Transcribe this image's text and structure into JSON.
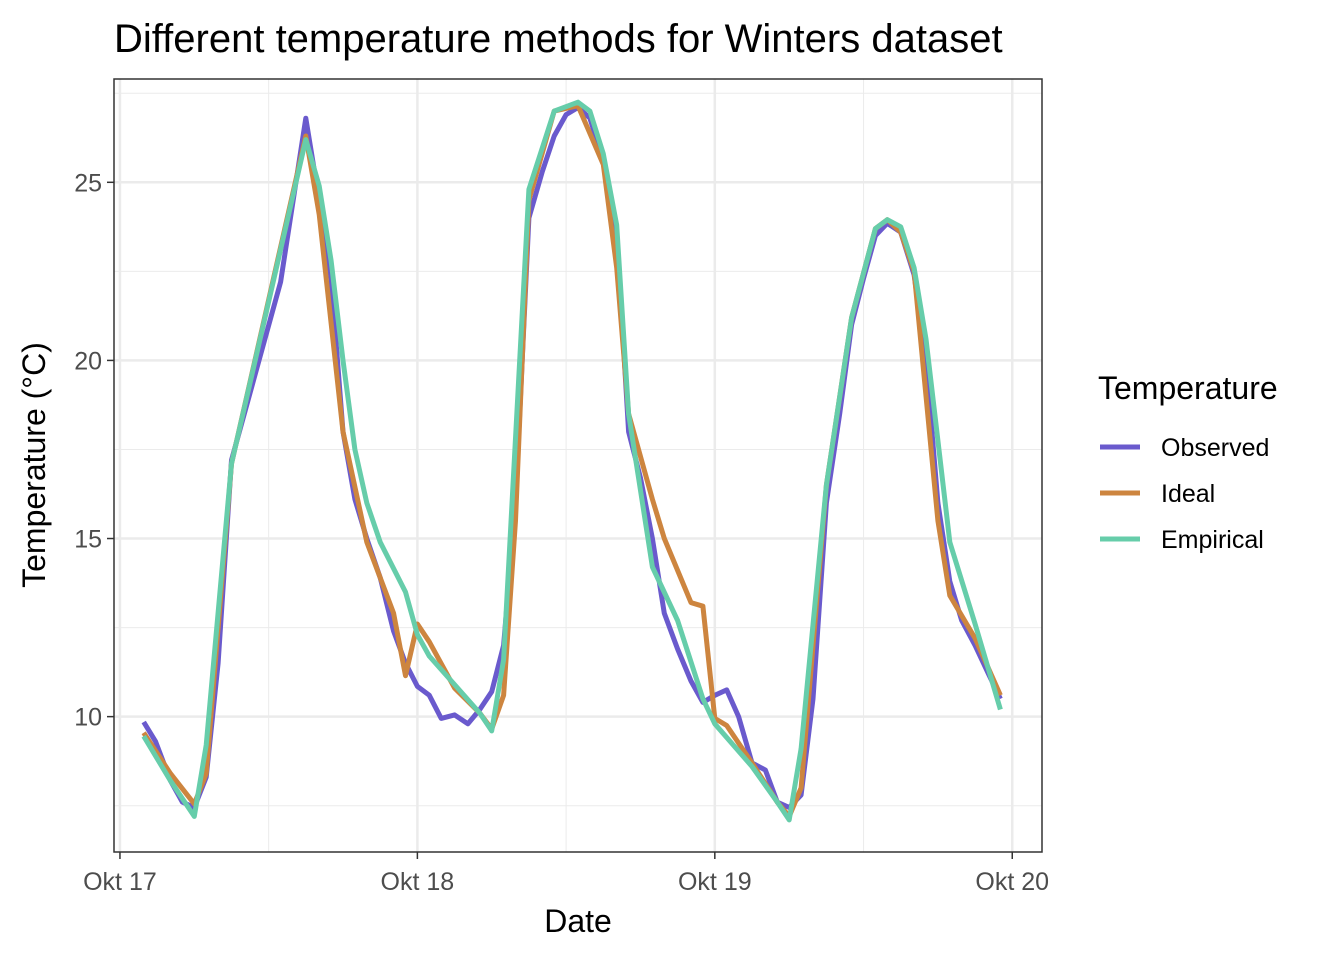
{
  "chart_data": {
    "type": "line",
    "title": "Different temperature methods for Winters dataset",
    "xlabel": "Date",
    "ylabel": "Temperature (°C)",
    "x_ticks": [
      "Okt 17",
      "Okt 18",
      "Okt 19",
      "Okt 20"
    ],
    "y_ticks": [
      "10",
      "15",
      "20",
      "25"
    ],
    "xlim": [
      -0.02,
      3.1
    ],
    "ylim": [
      6.2,
      27.9
    ],
    "x_unit": "days since Okt 17 00:00",
    "grid": true,
    "legend": {
      "title": "Temperature",
      "position": "right"
    },
    "series": [
      {
        "name": "Observed",
        "color": "#6a5acd",
        "points": [
          [
            0.08,
            9.85
          ],
          [
            0.12,
            9.3
          ],
          [
            0.17,
            8.2
          ],
          [
            0.21,
            7.6
          ],
          [
            0.25,
            7.45
          ],
          [
            0.29,
            8.3
          ],
          [
            0.33,
            11.5
          ],
          [
            0.375,
            17.2
          ],
          [
            0.54,
            22.2
          ],
          [
            0.625,
            26.8
          ],
          [
            0.67,
            24.5
          ],
          [
            0.71,
            22.3
          ],
          [
            0.75,
            18.0
          ],
          [
            0.79,
            16.1
          ],
          [
            0.83,
            15.0
          ],
          [
            0.875,
            13.9
          ],
          [
            0.92,
            12.4
          ],
          [
            0.96,
            11.5
          ],
          [
            1.0,
            10.85
          ],
          [
            1.04,
            10.6
          ],
          [
            1.08,
            9.95
          ],
          [
            1.125,
            10.05
          ],
          [
            1.17,
            9.8
          ],
          [
            1.21,
            10.2
          ],
          [
            1.25,
            10.7
          ],
          [
            1.29,
            12.0
          ],
          [
            1.33,
            16.0
          ],
          [
            1.375,
            24.0
          ],
          [
            1.42,
            25.3
          ],
          [
            1.46,
            26.3
          ],
          [
            1.5,
            26.9
          ],
          [
            1.54,
            27.1
          ],
          [
            1.58,
            26.8
          ],
          [
            1.625,
            25.6
          ],
          [
            1.67,
            23.6
          ],
          [
            1.71,
            18.0
          ],
          [
            1.75,
            16.7
          ],
          [
            1.79,
            15.0
          ],
          [
            1.83,
            12.9
          ],
          [
            1.875,
            11.9
          ],
          [
            1.92,
            11.0
          ],
          [
            1.96,
            10.4
          ],
          [
            2.0,
            10.6
          ],
          [
            2.04,
            10.75
          ],
          [
            2.08,
            10.0
          ],
          [
            2.125,
            8.7
          ],
          [
            2.17,
            8.5
          ],
          [
            2.21,
            7.6
          ],
          [
            2.25,
            7.45
          ],
          [
            2.29,
            7.8
          ],
          [
            2.33,
            10.5
          ],
          [
            2.375,
            16.0
          ],
          [
            2.42,
            18.5
          ],
          [
            2.46,
            21.0
          ],
          [
            2.5,
            22.3
          ],
          [
            2.54,
            23.5
          ],
          [
            2.58,
            23.85
          ],
          [
            2.625,
            23.6
          ],
          [
            2.67,
            22.4
          ],
          [
            2.71,
            20.0
          ],
          [
            2.75,
            16.0
          ],
          [
            2.79,
            13.8
          ],
          [
            2.83,
            12.7
          ],
          [
            2.875,
            12.0
          ],
          [
            2.92,
            11.2
          ],
          [
            2.96,
            10.5
          ]
        ]
      },
      {
        "name": "Ideal",
        "color": "#cd853f",
        "points": [
          [
            0.08,
            9.55
          ],
          [
            0.17,
            8.4
          ],
          [
            0.25,
            7.55
          ],
          [
            0.29,
            8.4
          ],
          [
            0.375,
            17.1
          ],
          [
            0.625,
            26.3
          ],
          [
            0.67,
            24.1
          ],
          [
            0.75,
            18.0
          ],
          [
            0.83,
            14.9
          ],
          [
            0.92,
            12.9
          ],
          [
            0.96,
            11.15
          ],
          [
            1.0,
            12.6
          ],
          [
            1.04,
            12.1
          ],
          [
            1.125,
            10.8
          ],
          [
            1.21,
            10.1
          ],
          [
            1.25,
            9.65
          ],
          [
            1.29,
            10.6
          ],
          [
            1.33,
            15.5
          ],
          [
            1.375,
            24.5
          ],
          [
            1.46,
            27.0
          ],
          [
            1.54,
            27.15
          ],
          [
            1.625,
            25.5
          ],
          [
            1.67,
            22.6
          ],
          [
            1.71,
            18.5
          ],
          [
            1.79,
            16.1
          ],
          [
            1.83,
            15.0
          ],
          [
            1.92,
            13.2
          ],
          [
            1.96,
            13.1
          ],
          [
            2.0,
            9.95
          ],
          [
            2.04,
            9.75
          ],
          [
            2.125,
            8.7
          ],
          [
            2.21,
            7.6
          ],
          [
            2.25,
            7.2
          ],
          [
            2.29,
            8.0
          ],
          [
            2.375,
            16.5
          ],
          [
            2.46,
            21.2
          ],
          [
            2.54,
            23.7
          ],
          [
            2.58,
            23.95
          ],
          [
            2.625,
            23.6
          ],
          [
            2.67,
            22.5
          ],
          [
            2.75,
            15.5
          ],
          [
            2.79,
            13.4
          ],
          [
            2.875,
            12.2
          ],
          [
            2.96,
            10.6
          ]
        ]
      },
      {
        "name": "Empirical",
        "color": "#66cdaa",
        "points": [
          [
            0.08,
            9.45
          ],
          [
            0.17,
            8.2
          ],
          [
            0.25,
            7.2
          ],
          [
            0.29,
            9.2
          ],
          [
            0.375,
            17.1
          ],
          [
            0.625,
            26.2
          ],
          [
            0.67,
            24.9
          ],
          [
            0.71,
            22.8
          ],
          [
            0.75,
            20.0
          ],
          [
            0.79,
            17.5
          ],
          [
            0.83,
            16.0
          ],
          [
            0.875,
            14.9
          ],
          [
            0.96,
            13.5
          ],
          [
            1.0,
            12.3
          ],
          [
            1.04,
            11.7
          ],
          [
            1.125,
            10.9
          ],
          [
            1.21,
            10.1
          ],
          [
            1.25,
            9.6
          ],
          [
            1.29,
            11.6
          ],
          [
            1.375,
            24.8
          ],
          [
            1.46,
            27.0
          ],
          [
            1.54,
            27.25
          ],
          [
            1.58,
            27.0
          ],
          [
            1.625,
            25.8
          ],
          [
            1.67,
            23.8
          ],
          [
            1.71,
            18.5
          ],
          [
            1.79,
            14.2
          ],
          [
            1.875,
            12.7
          ],
          [
            1.96,
            10.5
          ],
          [
            2.0,
            9.8
          ],
          [
            2.125,
            8.6
          ],
          [
            2.21,
            7.6
          ],
          [
            2.25,
            7.1
          ],
          [
            2.29,
            9.1
          ],
          [
            2.375,
            16.5
          ],
          [
            2.46,
            21.2
          ],
          [
            2.54,
            23.7
          ],
          [
            2.58,
            23.95
          ],
          [
            2.625,
            23.75
          ],
          [
            2.67,
            22.6
          ],
          [
            2.71,
            20.6
          ],
          [
            2.79,
            14.9
          ],
          [
            2.875,
            12.6
          ],
          [
            2.96,
            10.2
          ]
        ]
      }
    ]
  }
}
